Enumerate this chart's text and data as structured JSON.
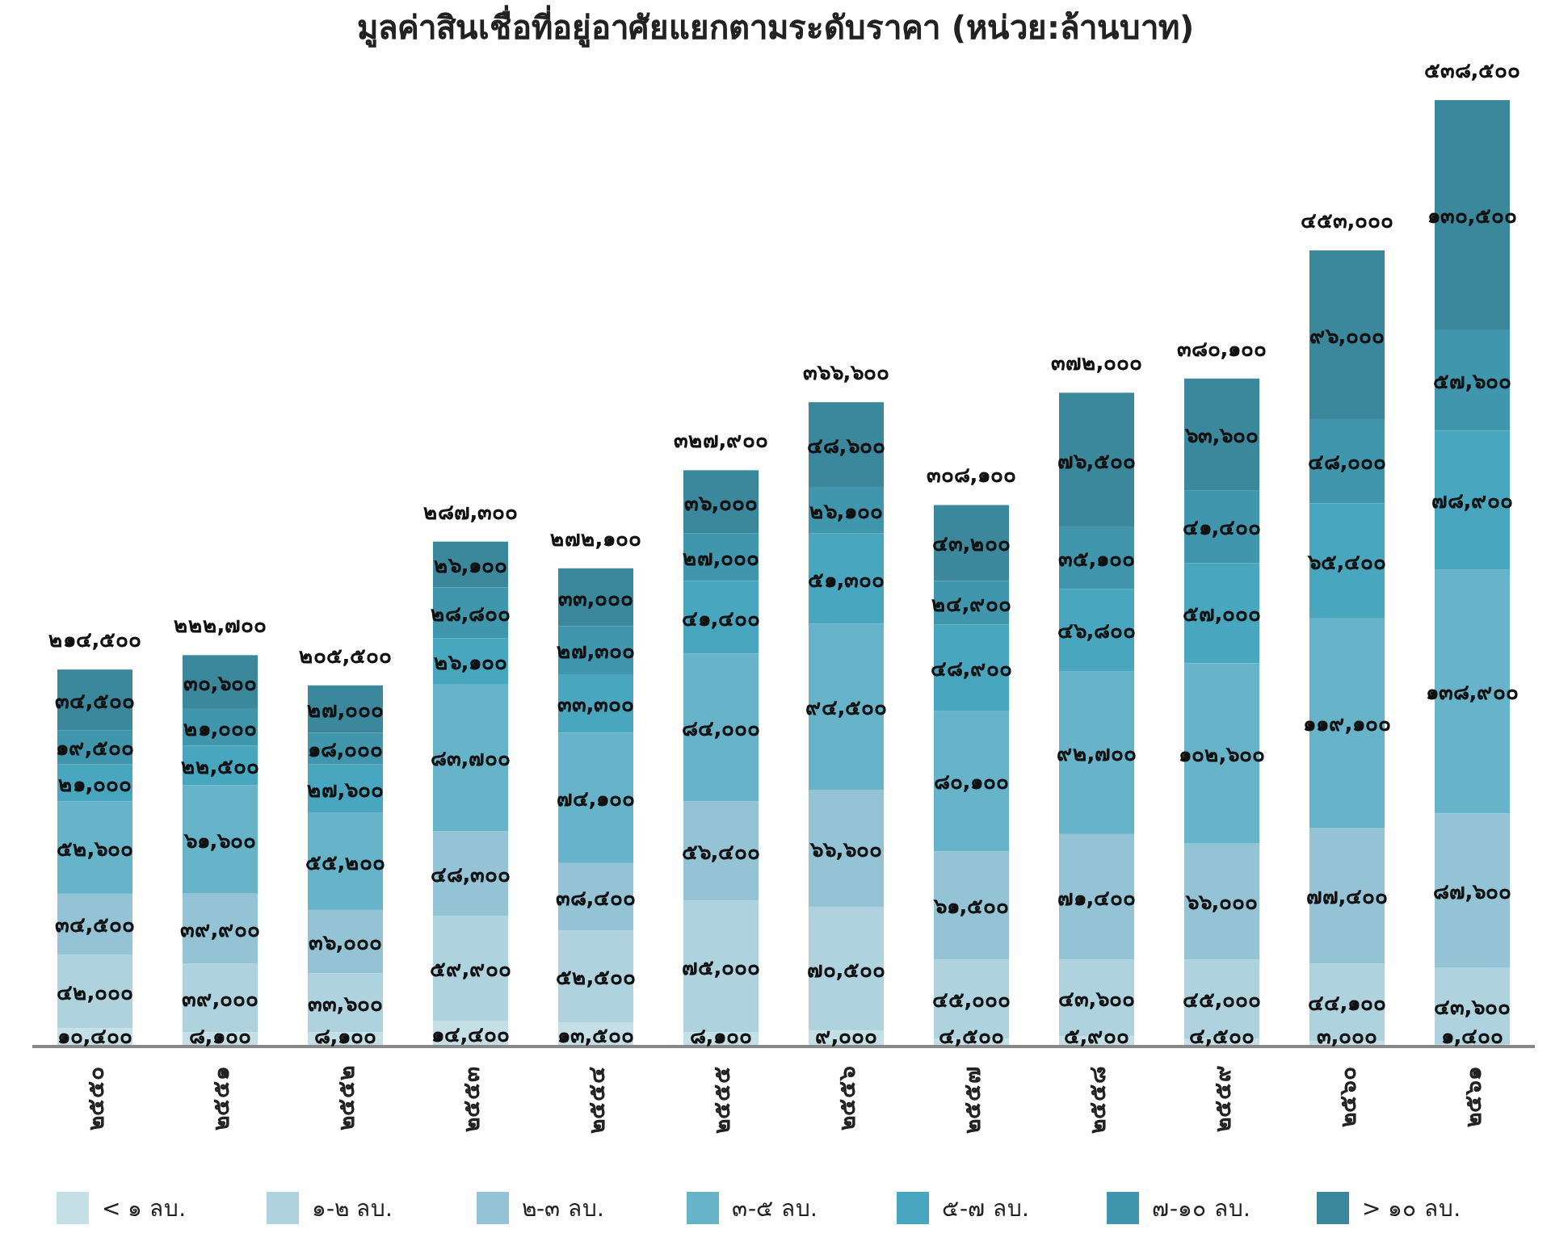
{
  "chart_data": {
    "type": "bar",
    "stacked": true,
    "title": "มูลค่าสินเชื่อที่อยู่อาศัยแยกตามระดับราคา (หน่วย:ล้านบาท)",
    "categories": [
      "๒๕๕๐",
      "๒๕๕๑",
      "๒๕๕๒",
      "๒๕๕๓",
      "๒๕๕๔",
      "๒๕๕๕",
      "๒๕๕๖",
      "๒๕๕๗",
      "๒๕๕๘",
      "๒๕๕๙",
      "๒๕๖๐",
      "๒๕๖๑"
    ],
    "series": [
      {
        "name": "< ๑ ลบ.",
        "color": "#c5dfe6",
        "values": [
          10400,
          8100,
          8100,
          14400,
          13500,
          8100,
          9000,
          4500,
          5900,
          4500,
          3000,
          1400
        ],
        "value_labels": [
          "๑๐,๔๐๐",
          "๘,๑๐๐",
          "๘,๑๐๐",
          "๑๔,๔๐๐",
          "๑๓,๕๐๐",
          "๘,๑๐๐",
          "๙,๐๐๐",
          "๔,๕๐๐",
          "๕,๙๐๐",
          "๔,๕๐๐",
          "๓,๐๐๐",
          "๑,๔๐๐"
        ]
      },
      {
        "name": "๑-๒ ลบ.",
        "color": "#aed3df",
        "values": [
          42000,
          39000,
          33600,
          59900,
          52500,
          75000,
          70500,
          45000,
          43600,
          45000,
          44100,
          43600
        ],
        "value_labels": [
          "๔๒,๐๐๐",
          "๓๙,๐๐๐",
          "๓๓,๖๐๐",
          "๕๙,๙๐๐",
          "๕๒,๕๐๐",
          "๗๕,๐๐๐",
          "๗๐,๕๐๐",
          "๔๕,๐๐๐",
          "๔๓,๖๐๐",
          "๔๕,๐๐๐",
          "๔๔,๑๐๐",
          "๔๓,๖๐๐"
        ]
      },
      {
        "name": "๒-๓ ลบ.",
        "color": "#93c3d4",
        "values": [
          34500,
          39900,
          36000,
          48300,
          38400,
          56400,
          66600,
          61500,
          71400,
          66000,
          77400,
          87600
        ],
        "value_labels": [
          "๓๔,๕๐๐",
          "๓๙,๙๐๐",
          "๓๖,๐๐๐",
          "๔๘,๓๐๐",
          "๓๘,๔๐๐",
          "๕๖,๔๐๐",
          "๖๖,๖๐๐",
          "๖๑,๕๐๐",
          "๗๑,๔๐๐",
          "๖๖,๐๐๐",
          "๗๗,๔๐๐",
          "๘๗,๖๐๐"
        ]
      },
      {
        "name": "๓-๕ ลบ.",
        "color": "#67b3c9",
        "values": [
          52600,
          61600,
          55200,
          83700,
          74100,
          84000,
          94500,
          80100,
          92700,
          102600,
          119100,
          138900
        ],
        "value_labels": [
          "๕๒,๖๐๐",
          "๖๑,๖๐๐",
          "๕๕,๒๐๐",
          "๘๓,๗๐๐",
          "๗๔,๑๐๐",
          "๘๔,๐๐๐",
          "๙๔,๕๐๐",
          "๘๐,๑๐๐",
          "๙๒,๗๐๐",
          "๑๐๒,๖๐๐",
          "๑๑๙,๑๐๐",
          "๑๓๘,๙๐๐"
        ]
      },
      {
        "name": "๕-๗ ลบ.",
        "color": "#48a6bf",
        "values": [
          21000,
          22500,
          27600,
          26100,
          33300,
          41400,
          51300,
          48900,
          46800,
          57000,
          65400,
          78900
        ],
        "value_labels": [
          "๒๑,๐๐๐",
          "๒๒,๕๐๐",
          "๒๗,๖๐๐",
          "๒๖,๑๐๐",
          "๓๓,๓๐๐",
          "๔๑,๔๐๐",
          "๕๑,๓๐๐",
          "๔๘,๙๐๐",
          "๔๖,๘๐๐",
          "๕๗,๐๐๐",
          "๖๕,๔๐๐",
          "๗๘,๙๐๐"
        ]
      },
      {
        "name": "๗-๑๐ ลบ.",
        "color": "#4096ad",
        "values": [
          19500,
          21000,
          18000,
          28800,
          27300,
          27000,
          26100,
          24900,
          35100,
          41400,
          48000,
          57600
        ],
        "value_labels": [
          "๑๙,๕๐๐",
          "๒๑,๐๐๐",
          "๑๘,๐๐๐",
          "๒๘,๘๐๐",
          "๒๗,๓๐๐",
          "๒๗,๐๐๐",
          "๒๖,๑๐๐",
          "๒๔,๙๐๐",
          "๓๕,๑๐๐",
          "๔๑,๔๐๐",
          "๔๘,๐๐๐",
          "๕๗,๖๐๐"
        ]
      },
      {
        "name": "> ๑๐ ลบ.",
        "color": "#3b879c",
        "values": [
          34500,
          30600,
          27000,
          26100,
          33000,
          36000,
          48600,
          43200,
          76500,
          63600,
          96000,
          130500
        ],
        "value_labels": [
          "๓๔,๕๐๐",
          "๓๐,๖๐๐",
          "๒๗,๐๐๐",
          "๒๖,๑๐๐",
          "๓๓,๐๐๐",
          "๓๖,๐๐๐",
          "๔๘,๖๐๐",
          "๔๓,๒๐๐",
          "๗๖,๕๐๐",
          "๖๓,๖๐๐",
          "๙๖,๐๐๐",
          "๑๓๐,๕๐๐"
        ]
      }
    ],
    "totals": [
      "๒๑๔,๕๐๐",
      "๒๒๒,๗๐๐",
      "๒๐๕,๕๐๐",
      "๒๘๗,๓๐๐",
      "๒๗๒,๑๐๐",
      "๓๒๗,๙๐๐",
      "๓๖๖,๖๐๐",
      "๓๐๘,๑๐๐",
      "๓๗๒,๐๐๐",
      "๓๘๐,๑๐๐",
      "๔๕๓,๐๐๐",
      "๕๓๘,๕๐๐"
    ],
    "tick_labels": "x",
    "legend": "bottom"
  }
}
